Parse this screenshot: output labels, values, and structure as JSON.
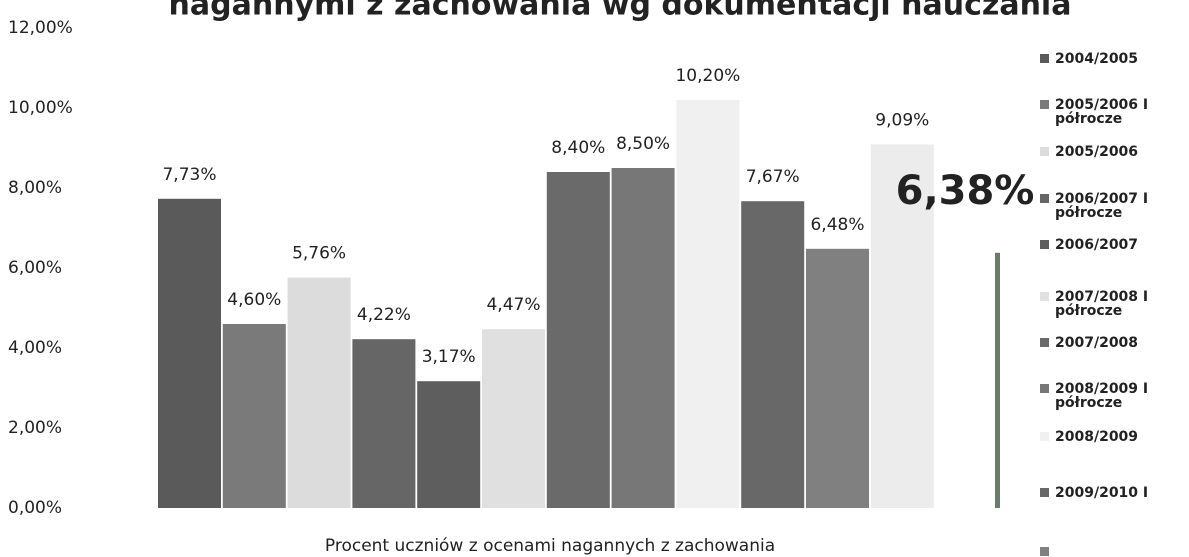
{
  "chart_data": {
    "type": "bar",
    "title": "nagannymi z zachowania wg dokumentacji nauczania",
    "x_label": "Procent uczniów z ocenami nagannych z zachowania",
    "categories": [
      "2004/2005",
      "2005/2006 I półrocze",
      "2005/2006",
      "2006/2007 I półrocze",
      "2006/2007",
      "2007/2008 I półrocze",
      "2007/2008",
      "2008/2009 I półrocze",
      "2008/2009",
      "2009/2010 I",
      null,
      null,
      null
    ],
    "values": [
      7.73,
      4.6,
      5.76,
      4.22,
      3.17,
      4.47,
      8.4,
      8.5,
      10.2,
      7.67,
      6.48,
      9.09,
      6.38
    ],
    "value_labels": [
      "7,73%",
      "4,60%",
      "5,76%",
      "4,22%",
      "3,17%",
      "4,47%",
      "8,40%",
      "8,50%",
      "10,20%",
      "7,67%",
      "6,48%",
      "9,09%",
      "6,38%"
    ],
    "colors": [
      "#5a5a5a",
      "#7a7a7a",
      "#dcdcdc",
      "#666666",
      "#5e5e5e",
      "#e0e0e0",
      "#6a6a6a",
      "#777777",
      "#f0f0f0",
      "#686868",
      "#808080",
      "#ececec",
      "#6b7a6b"
    ],
    "ylim": [
      0,
      12
    ],
    "yticks": [
      {
        "value": 0,
        "label": "0,00%"
      },
      {
        "value": 2,
        "label": "2,00%"
      },
      {
        "value": 4,
        "label": "4,00%"
      },
      {
        "value": 6,
        "label": "6,00%"
      },
      {
        "value": 8,
        "label": "8,00%"
      },
      {
        "value": 10,
        "label": "10,00%"
      },
      {
        "value": 12,
        "label": "12,00%"
      }
    ],
    "grid": false
  }
}
